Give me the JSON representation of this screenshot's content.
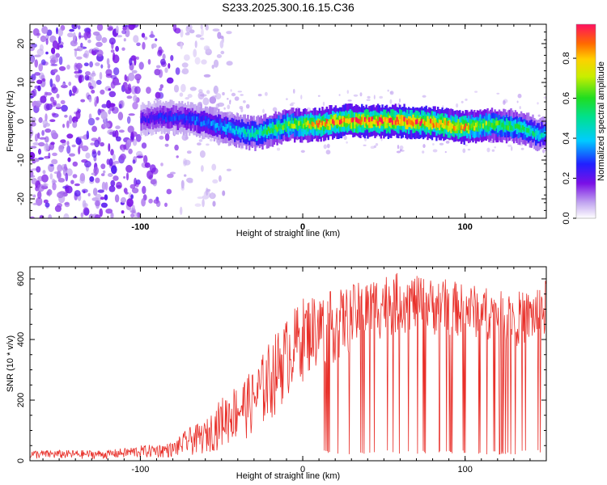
{
  "title": "S233.2025.300.16.15.C36",
  "chart_data": [
    {
      "type": "heatmap",
      "name": "spectrogram",
      "xlabel": "Height of straight line (km)",
      "ylabel": "Frequency (Hz)",
      "xlim": [
        -168,
        150
      ],
      "ylim": [
        -25,
        25
      ],
      "xticks": [
        -100,
        0,
        100
      ],
      "yticks": [
        -20,
        -10,
        0,
        10,
        20
      ],
      "xticks_minor_step": 10,
      "yticks_minor_step": 2,
      "colorbar": {
        "label": "Normalized spectral amplitude",
        "range": [
          0,
          0.97
        ],
        "ticks": [
          0.0,
          0.2,
          0.4,
          0.6,
          0.8
        ],
        "colormap": "rainbow"
      },
      "ridge": {
        "x": [
          -100,
          -90,
          -80,
          -70,
          -60,
          -50,
          -40,
          -30,
          -20,
          -10,
          0,
          10,
          20,
          40,
          60,
          80,
          90,
          100,
          110,
          120,
          130,
          140,
          145,
          150
        ],
        "freq": [
          0.5,
          1.0,
          1.0,
          0.5,
          -0.5,
          -1.5,
          -2.5,
          -3.2,
          -2.2,
          -1.0,
          -1.0,
          -0.8,
          0.0,
          0.0,
          0.0,
          -0.5,
          -1.2,
          -1.5,
          -1.0,
          -1.0,
          -1.3,
          -2.5,
          -3.5,
          -3.0
        ],
        "peak_amplitude": [
          0.22,
          0.25,
          0.28,
          0.3,
          0.33,
          0.38,
          0.42,
          0.48,
          0.55,
          0.62,
          0.7,
          0.8,
          0.88,
          0.9,
          0.92,
          0.85,
          0.82,
          0.8,
          0.65,
          0.6,
          0.55,
          0.5,
          0.45,
          0.4
        ]
      },
      "noise_region": {
        "x_from": -168,
        "x_to": -75,
        "amplitude": [
          0.05,
          0.2
        ]
      }
    },
    {
      "type": "line",
      "name": "snr",
      "xlabel": "Height of straight line (km)",
      "ylabel": "SNR (10 * v/v)",
      "xlim": [
        -168,
        150
      ],
      "ylim": [
        0,
        640
      ],
      "xticks": [
        -100,
        0,
        100
      ],
      "yticks": [
        0,
        200,
        400,
        600
      ],
      "color": "#e8302a",
      "envelope": {
        "x": [
          -168,
          -120,
          -100,
          -80,
          -70,
          -60,
          -50,
          -40,
          -30,
          -20,
          -10,
          0,
          10,
          20,
          30,
          40,
          50,
          60,
          70,
          80,
          90,
          100,
          110,
          120,
          130,
          140,
          150
        ],
        "low": [
          5,
          5,
          8,
          10,
          15,
          20,
          40,
          60,
          80,
          120,
          200,
          260,
          300,
          320,
          350,
          380,
          400,
          420,
          420,
          410,
          410,
          400,
          400,
          390,
          380,
          370,
          380
        ],
        "high": [
          35,
          35,
          50,
          60,
          110,
          130,
          210,
          260,
          300,
          400,
          470,
          540,
          560,
          560,
          580,
          600,
          620,
          620,
          610,
          600,
          600,
          580,
          580,
          560,
          560,
          560,
          600
        ]
      },
      "dropouts_start_x": 10,
      "dropout_value": 20
    }
  ]
}
